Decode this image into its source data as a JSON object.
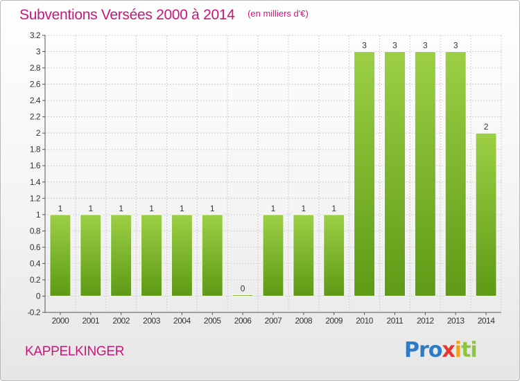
{
  "header": {
    "title": "Subventions Versées 2000 à 2014",
    "unit": "(en milliers d'€)"
  },
  "footer": {
    "place": "KAPPELKINGER",
    "logo_parts": [
      "Pro",
      "x",
      "i",
      "ti"
    ]
  },
  "colors": {
    "title": "#c8177a",
    "bar_top": "#9ccf45",
    "bar_bottom": "#5e9a16",
    "grid": "#cfcfcf",
    "axis": "#555555"
  },
  "chart_data": {
    "type": "bar",
    "title": "Subventions Versées 2000 à 2014",
    "subtitle": "(en milliers d'€)",
    "xlabel": "",
    "ylabel": "",
    "categories": [
      "2000",
      "2001",
      "2002",
      "2003",
      "2004",
      "2005",
      "2006",
      "2007",
      "2008",
      "2009",
      "2010",
      "2011",
      "2012",
      "2013",
      "2014"
    ],
    "values": [
      1,
      1,
      1,
      1,
      1,
      1,
      0,
      1,
      1,
      1,
      3,
      3,
      3,
      3,
      2
    ],
    "data_labels": [
      "1",
      "1",
      "1",
      "1",
      "1",
      "1",
      "0",
      "1",
      "1",
      "1",
      "3",
      "3",
      "3",
      "3",
      "2"
    ],
    "ylim": [
      -0.2,
      3.2
    ],
    "yticks": [
      -0.2,
      0,
      0.2,
      0.4,
      0.6,
      0.8,
      1,
      1.2,
      1.4,
      1.6,
      1.8,
      2,
      2.2,
      2.4,
      2.6,
      2.8,
      3,
      3.2
    ],
    "ytick_labels": [
      "-0.2",
      "0",
      "0.2",
      "0.4",
      "0.6",
      "0.8",
      "1",
      "1.2",
      "1.4",
      "1.6",
      "1.8",
      "2",
      "2.2",
      "2.4",
      "2.6",
      "2.8",
      "3",
      "3.2"
    ],
    "grid": true,
    "legend": "none"
  }
}
